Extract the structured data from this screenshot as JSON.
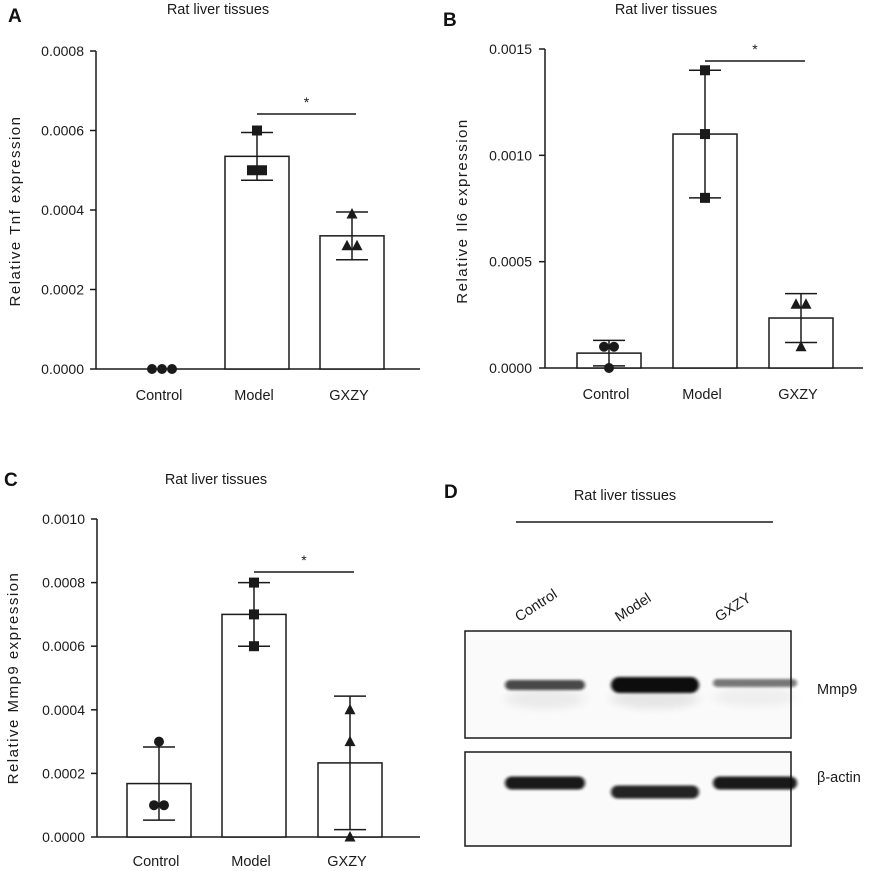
{
  "chart_data": [
    {
      "panel": "A",
      "type": "bar",
      "title": "Rat liver tissues",
      "xlabel": "",
      "ylabel": "Relative Tnf expression",
      "categories": [
        "Control",
        "Model",
        "GXZY"
      ],
      "values": [
        0.0,
        0.000535,
        0.000335
      ],
      "errors": [
        0.0,
        6e-05,
        6e-05
      ],
      "points": [
        [
          0.0,
          0.0,
          0.0
        ],
        [
          0.0006,
          0.0005,
          0.0005
        ],
        [
          0.00039,
          0.00031,
          0.00031
        ]
      ],
      "markers": [
        "circle",
        "square",
        "triangle"
      ],
      "ylim": [
        0,
        0.0008
      ],
      "yticks": [
        "0.0000",
        "0.0002",
        "0.0004",
        "0.0006",
        "0.0008"
      ],
      "significance": {
        "from": 1,
        "to": 2,
        "label": "*"
      }
    },
    {
      "panel": "B",
      "type": "bar",
      "title": "Rat liver tissues",
      "xlabel": "",
      "ylabel": "Relative Il6 expression",
      "categories": [
        "Control",
        "Model",
        "GXZY"
      ],
      "values": [
        7e-05,
        0.0011,
        0.000235
      ],
      "errors": [
        6e-05,
        0.0003,
        0.000115
      ],
      "points": [
        [
          0.0001,
          0.0001,
          0.0
        ],
        [
          0.0014,
          0.0011,
          0.0008
        ],
        [
          0.0003,
          0.0003,
          0.0001
        ]
      ],
      "markers": [
        "circle",
        "square",
        "triangle"
      ],
      "ylim": [
        0,
        0.0015
      ],
      "yticks": [
        "0.0000",
        "0.0005",
        "0.0010",
        "0.0015"
      ],
      "significance": {
        "from": 1,
        "to": 2,
        "label": "*"
      }
    },
    {
      "panel": "C",
      "type": "bar",
      "title": "Rat liver tissues",
      "xlabel": "",
      "ylabel": "Relative Mmp9 expression",
      "categories": [
        "Control",
        "Model",
        "GXZY"
      ],
      "values": [
        0.000168,
        0.0007,
        0.000233
      ],
      "errors": [
        0.000115,
        0.0001,
        0.00021
      ],
      "points": [
        [
          0.0003,
          0.0001,
          0.0001
        ],
        [
          0.0008,
          0.0007,
          0.0006
        ],
        [
          0.0004,
          0.0003,
          0.0
        ]
      ],
      "markers": [
        "circle",
        "square",
        "triangle"
      ],
      "ylim": [
        0,
        0.001
      ],
      "yticks": [
        "0.0000",
        "0.0002",
        "0.0004",
        "0.0006",
        "0.0008",
        "0.0010"
      ],
      "significance": {
        "from": 1,
        "to": 2,
        "label": "*"
      }
    }
  ],
  "blot": {
    "panel": "D",
    "title": "Rat liver tissues",
    "lanes": [
      "Control",
      "Model",
      "GXZY"
    ],
    "rows": [
      {
        "label": "Mmp9",
        "intensity": [
          0.75,
          1.0,
          0.55
        ]
      },
      {
        "label": "β-actin",
        "intensity": [
          0.95,
          0.9,
          0.95
        ]
      }
    ]
  }
}
